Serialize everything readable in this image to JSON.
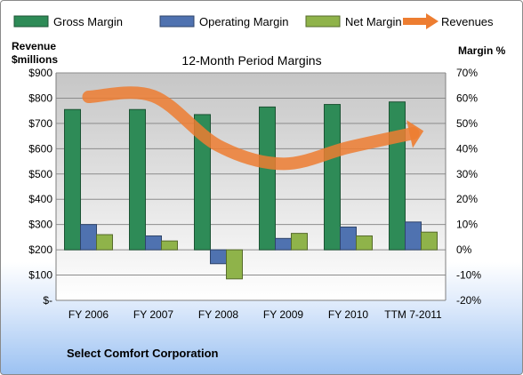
{
  "chart_data": {
    "type": "bar",
    "title": "12-Month Period Margins",
    "categories": [
      "FY 2006",
      "FY 2007",
      "FY 2008",
      "FY 2009",
      "FY 2010",
      "TTM 7-2011"
    ],
    "series": [
      {
        "name": "Gross Margin",
        "axis": "right",
        "kind": "bar",
        "color": "#2e8b57",
        "values": [
          55.5,
          55.5,
          53.5,
          56.5,
          57.5,
          58.5
        ]
      },
      {
        "name": "Operating Margin",
        "axis": "right",
        "kind": "bar",
        "color": "#4f72b0",
        "values": [
          10,
          5.5,
          -5.5,
          4.5,
          9,
          11
        ]
      },
      {
        "name": "Net Margin",
        "axis": "right",
        "kind": "bar",
        "color": "#8fb34a",
        "values": [
          6,
          3.5,
          -11.5,
          6.5,
          5.5,
          7
        ]
      },
      {
        "name": "Revenues",
        "axis": "left",
        "kind": "line",
        "color": "#ed7d31",
        "values": [
          805,
          808,
          612,
          540,
          605,
          661
        ]
      }
    ],
    "ylabel_left": "Revenue $millions",
    "ylabel_right": "Margin %",
    "y_left": {
      "lim": [
        0,
        900
      ],
      "ticks": [
        "$-",
        "$100",
        "$200",
        "$300",
        "$400",
        "$500",
        "$600",
        "$700",
        "$800",
        "$900"
      ]
    },
    "y_right": {
      "lim": [
        -20,
        70
      ],
      "ticks": [
        "-20%",
        "-10%",
        "0%",
        "10%",
        "20%",
        "30%",
        "40%",
        "50%",
        "60%",
        "70%"
      ]
    },
    "legend_position": "top",
    "grid": true
  },
  "labels": {
    "ylabel_left_line1": "Revenue",
    "ylabel_left_line2": "$millions",
    "ylabel_right": "Margin  %",
    "footer": "Select Comfort Corporation"
  }
}
